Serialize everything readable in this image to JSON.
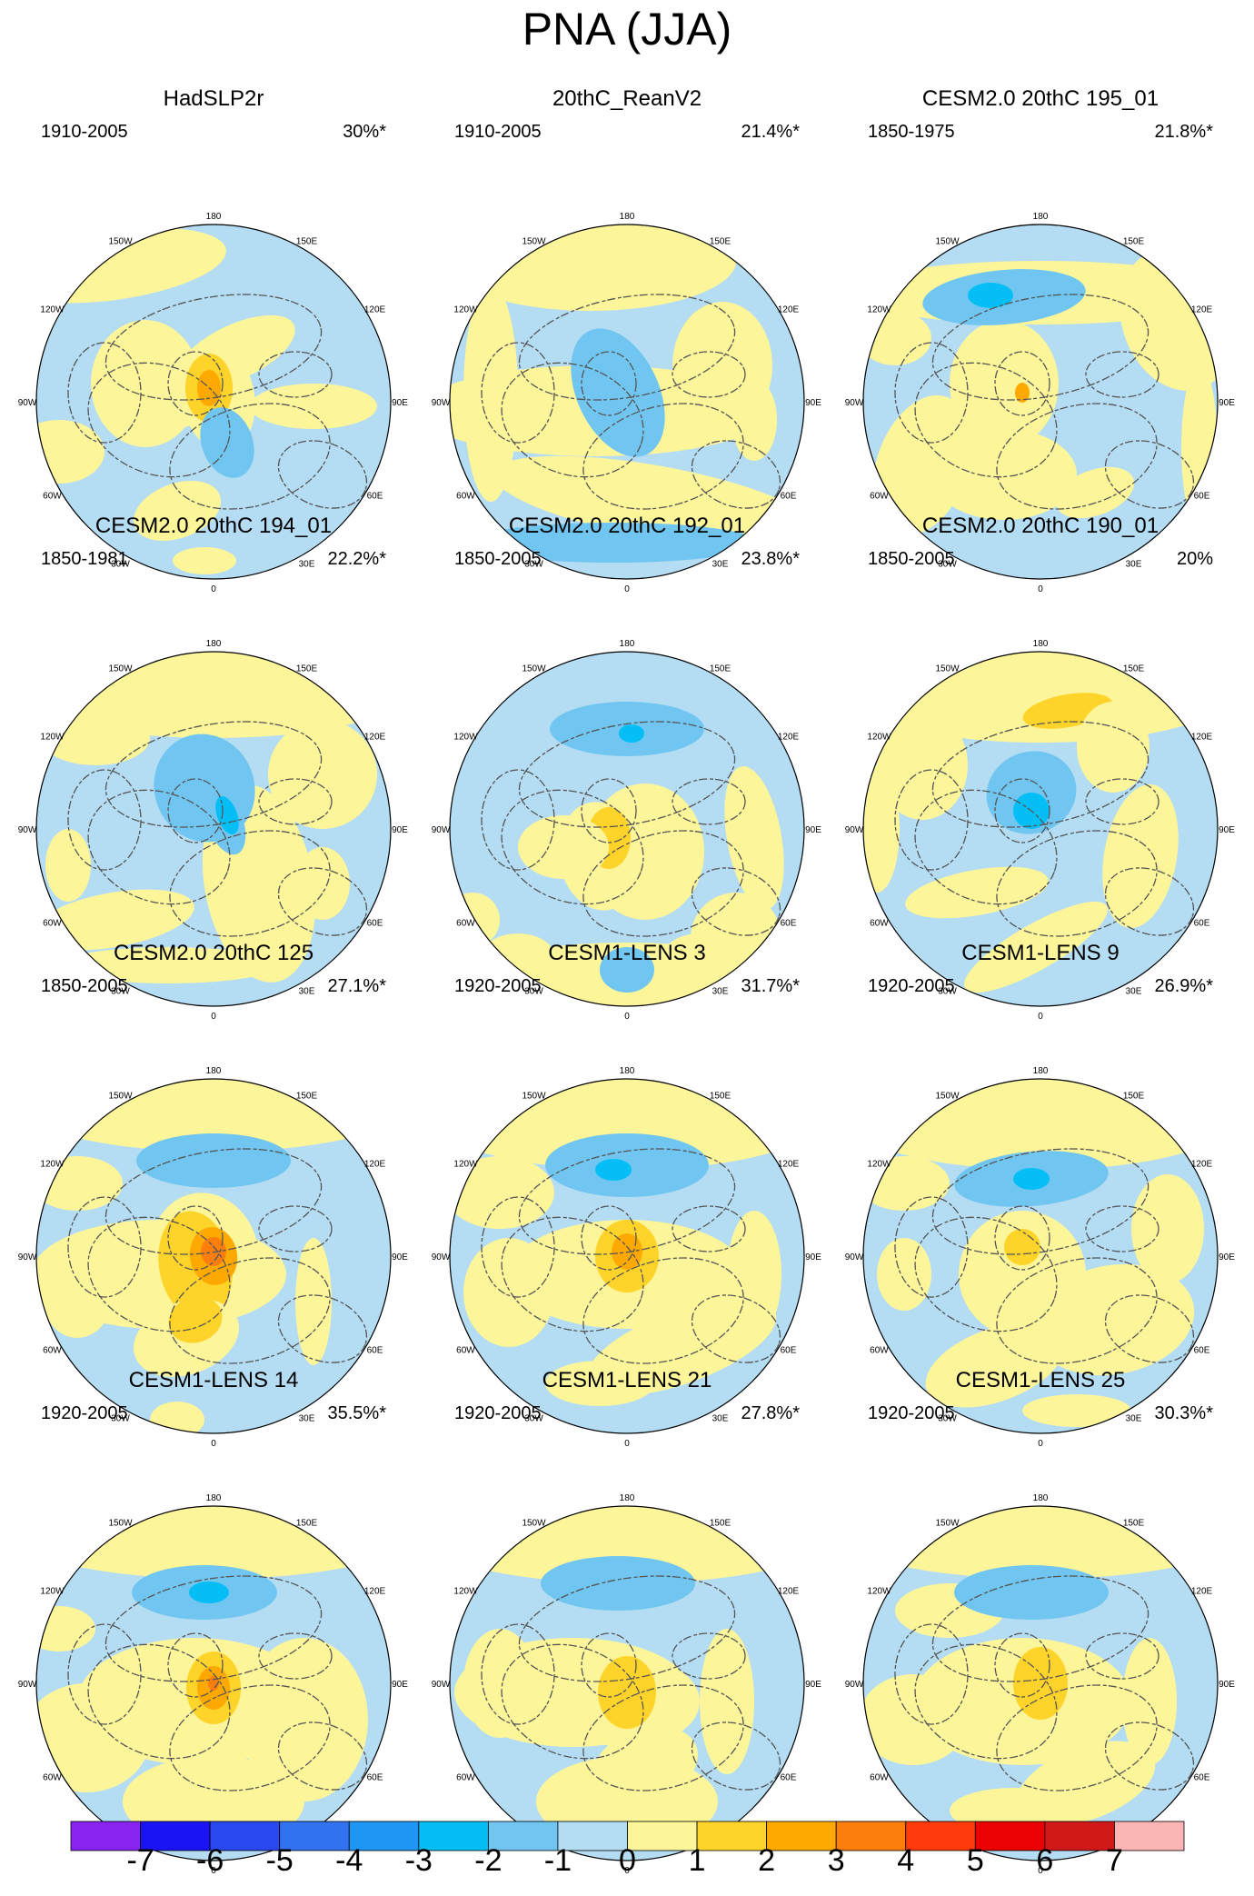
{
  "title": "PNA (JJA)",
  "colors": {
    "ocean_fill": "#b4dcf3",
    "coast": "#555555",
    "neg_levels": [
      "#b4dcf3",
      "#70c6f0",
      "#05bef5",
      "#1e96f5",
      "#3271f0",
      "#2a48f0",
      "#1a14f5",
      "#7f20f0"
    ],
    "pos_levels": [
      "#fcf59a",
      "#fed32a",
      "#fea902",
      "#fc7f0d",
      "#ff3b0b",
      "#eb0102",
      "#d11919",
      "#fcb5b5"
    ]
  },
  "longitude_labels": [
    "180",
    "150E",
    "120E",
    "90E",
    "60E",
    "30E",
    "0",
    "30W",
    "60W",
    "90W",
    "120W",
    "150W"
  ],
  "panels": [
    {
      "title": "HadSLP2r",
      "period": "1910-2005",
      "pct": "30%*"
    },
    {
      "title": "20thC_ReanV2",
      "period": "1910-2005",
      "pct": "21.4%*"
    },
    {
      "title": "CESM2.0 20thC 195_01",
      "period": "1850-1975",
      "pct": "21.8%*"
    },
    {
      "title": "CESM2.0 20thC 194_01",
      "period": "1850-1981",
      "pct": "22.2%*"
    },
    {
      "title": "CESM2.0 20thC 192_01",
      "period": "1850-2005",
      "pct": "23.8%*"
    },
    {
      "title": "CESM2.0 20thC 190_01",
      "period": "1850-2005",
      "pct": "20%"
    },
    {
      "title": "CESM2.0 20thC 125",
      "period": "1850-2005",
      "pct": "27.1%*"
    },
    {
      "title": "CESM1-LENS 3",
      "period": "1920-2005",
      "pct": "31.7%*"
    },
    {
      "title": "CESM1-LENS 9",
      "period": "1920-2005",
      "pct": "26.9%*"
    },
    {
      "title": "CESM1-LENS 14",
      "period": "1920-2005",
      "pct": "35.5%*"
    },
    {
      "title": "CESM1-LENS 21",
      "period": "1920-2005",
      "pct": "27.8%*"
    },
    {
      "title": "CESM1-LENS 25",
      "period": "1920-2005",
      "pct": "30.3%*"
    }
  ],
  "colorbar": {
    "labels": [
      "-7",
      "-6",
      "-5",
      "-4",
      "-3",
      "-2",
      "-1",
      "0",
      "1",
      "2",
      "3",
      "4",
      "5",
      "6",
      "7"
    ],
    "colors": [
      "#8a22f0",
      "#1a14f5",
      "#2a48f0",
      "#3271f0",
      "#1e96f5",
      "#05bef5",
      "#70c6f0",
      "#b4dcf3",
      "#fcf59a",
      "#fed32a",
      "#fea902",
      "#fc7f0d",
      "#ff3b0b",
      "#eb0102",
      "#d11919",
      "#fcb5b5"
    ]
  }
}
